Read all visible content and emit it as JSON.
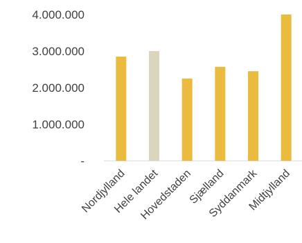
{
  "chart_data": {
    "type": "bar",
    "categories": [
      "Nordjylland",
      "Hele landet",
      "Hovedstaden",
      "Sjælland",
      "Syddanmark",
      "Midtjylland"
    ],
    "values": [
      2850000,
      3000000,
      2250000,
      2570000,
      2450000,
      4000000
    ],
    "y_ticks": [
      0,
      1000000,
      2000000,
      3000000,
      4000000
    ],
    "y_tick_labels": [
      "-",
      "1.000.000",
      "2.000.000",
      "3.000.000",
      "4.000.000"
    ],
    "ylim": [
      0,
      4000000
    ],
    "grid": false,
    "legend": "none",
    "bar_colors": [
      "#ebbb40",
      "#d9d6bd",
      "#ebbb40",
      "#ebbb40",
      "#ebbb40",
      "#ebbb40"
    ],
    "axis_color": "#d9d9d9"
  }
}
